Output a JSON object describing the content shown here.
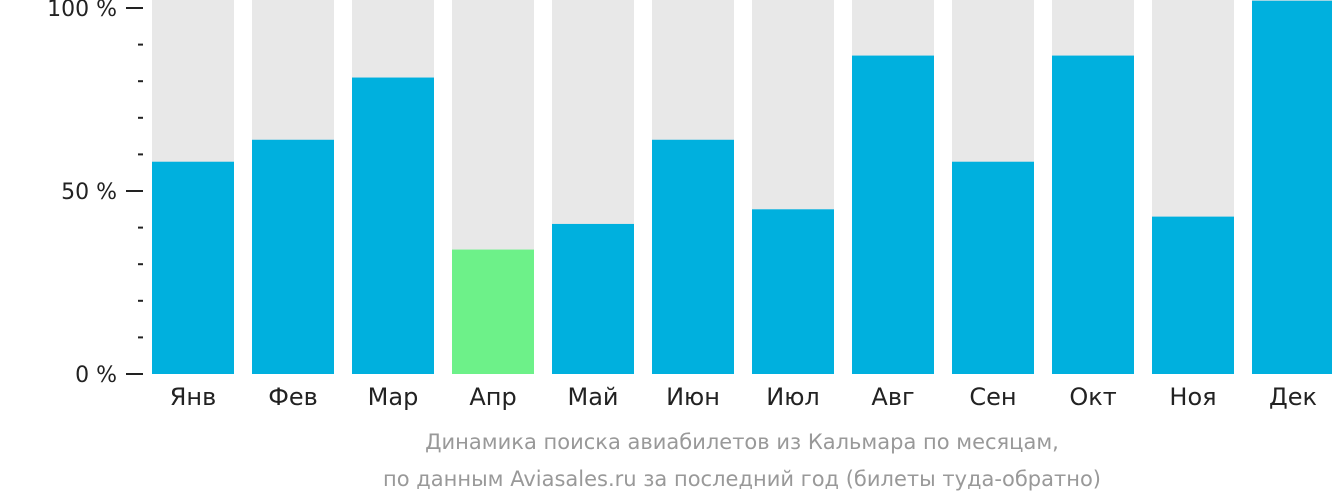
{
  "chart_data": {
    "type": "bar",
    "categories": [
      "Янв",
      "Фев",
      "Мар",
      "Апр",
      "Май",
      "Июн",
      "Июл",
      "Авг",
      "Сен",
      "Окт",
      "Ноя",
      "Дек"
    ],
    "values": [
      58,
      64,
      81,
      34,
      41,
      64,
      45,
      87,
      58,
      87,
      43,
      102
    ],
    "highlight_index": 3,
    "ylim": [
      0,
      100
    ],
    "yticks": [
      {
        "value": 0,
        "label": "0 %"
      },
      {
        "value": 50,
        "label": "50 %"
      },
      {
        "value": 100,
        "label": "100 %"
      }
    ],
    "minor_tick_step": 10,
    "xlabel": "",
    "ylabel": "",
    "title": "",
    "grid": false,
    "colors": {
      "bar": "#00b0de",
      "highlight": "#6df189",
      "background_bar": "#e8e8e8",
      "axis": "#222222",
      "caption": "#999999"
    }
  },
  "caption": {
    "line1": "Динамика поиска авиабилетов из Кальмара по месяцам,",
    "line2": "по данным Aviasales.ru за последний год (билеты туда-обратно)"
  }
}
